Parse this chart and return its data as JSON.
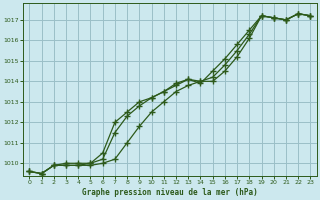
{
  "title": "Graphe pression niveau de la mer (hPa)",
  "bg_color": "#cce8ee",
  "grid_color": "#9bbfc7",
  "line_color": "#2d5a1b",
  "xlim": [
    -0.5,
    23.5
  ],
  "ylim": [
    1009.4,
    1017.8
  ],
  "xticks": [
    0,
    1,
    2,
    3,
    4,
    5,
    6,
    7,
    8,
    9,
    10,
    11,
    12,
    13,
    14,
    15,
    16,
    17,
    18,
    19,
    20,
    21,
    22,
    23
  ],
  "yticks": [
    1010,
    1011,
    1012,
    1013,
    1014,
    1015,
    1016,
    1017
  ],
  "line1_x": [
    0,
    1,
    2,
    3,
    4,
    5,
    6,
    7,
    8,
    9,
    10,
    11,
    12,
    13,
    14,
    15,
    16,
    17,
    18,
    19,
    20,
    21,
    22,
    23
  ],
  "line1_y": [
    1009.6,
    1009.5,
    1009.9,
    1009.9,
    1009.9,
    1009.9,
    1010.0,
    1010.2,
    1011.0,
    1011.8,
    1012.5,
    1013.0,
    1013.5,
    1013.8,
    1014.0,
    1014.0,
    1014.5,
    1015.2,
    1016.1,
    1017.2,
    1017.1,
    1017.0,
    1017.3,
    1017.2
  ],
  "line2_x": [
    0,
    1,
    2,
    3,
    4,
    5,
    6,
    7,
    8,
    9,
    10,
    11,
    12,
    13,
    14,
    15,
    16,
    17,
    18,
    19,
    20,
    21,
    22,
    23
  ],
  "line2_y": [
    1009.6,
    1009.5,
    1009.9,
    1009.9,
    1009.9,
    1010.0,
    1010.2,
    1011.5,
    1012.3,
    1012.8,
    1013.2,
    1013.5,
    1013.9,
    1014.1,
    1014.0,
    1014.2,
    1014.8,
    1015.5,
    1016.3,
    1017.2,
    1017.1,
    1017.0,
    1017.3,
    1017.2
  ],
  "line3_x": [
    0,
    1,
    2,
    3,
    4,
    5,
    6,
    7,
    8,
    9,
    10,
    11,
    12,
    13,
    14,
    15,
    16,
    17,
    18,
    19,
    20,
    21,
    22,
    23
  ],
  "line3_y": [
    1009.6,
    1009.5,
    1009.9,
    1010.0,
    1010.0,
    1010.0,
    1010.5,
    1012.0,
    1012.5,
    1013.0,
    1013.2,
    1013.5,
    1013.8,
    1014.1,
    1013.9,
    1014.5,
    1015.1,
    1015.8,
    1016.5,
    1017.2,
    1017.1,
    1017.0,
    1017.3,
    1017.2
  ],
  "marker": "+",
  "markersize": 4,
  "linewidth": 0.9
}
